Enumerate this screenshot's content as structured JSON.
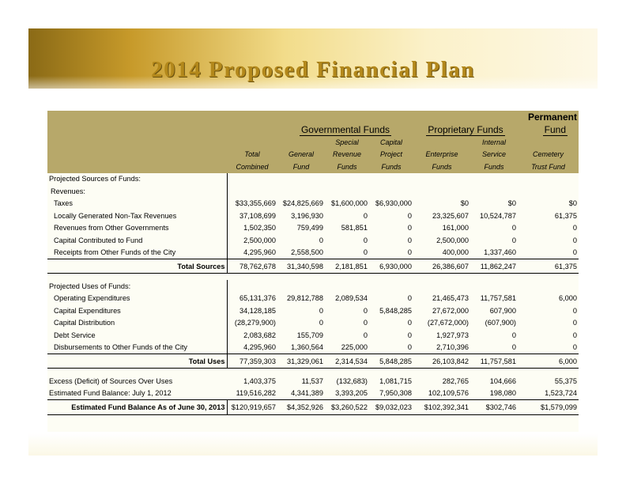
{
  "title": "2014 Proposed Financial Plan",
  "header": {
    "permanent": "Permanent",
    "governmental": "Governmental Funds",
    "proprietary": "Proprietary Funds",
    "fund": "Fund",
    "columns": [
      {
        "l1": "",
        "l2": "Total",
        "l3": "Combined"
      },
      {
        "l1": "",
        "l2": "General",
        "l3": "Fund"
      },
      {
        "l1": "Special",
        "l2": "Revenue",
        "l3": "Funds"
      },
      {
        "l1": "Capital",
        "l2": "Project",
        "l3": "Funds"
      },
      {
        "l1": "",
        "l2": "Enterprise",
        "l3": "Funds"
      },
      {
        "l1": "Internal",
        "l2": "Service",
        "l3": "Funds"
      },
      {
        "l1": "",
        "l2": "Cemetery",
        "l3": "Trust Fund"
      }
    ]
  },
  "sources": {
    "heading": "Projected Sources of Funds:",
    "subheading": "Revenues:",
    "rows": [
      {
        "label": "Taxes",
        "values": [
          "$33,355,669",
          "$24,825,669",
          "$1,600,000",
          "$6,930,000",
          "$0",
          "$0",
          "$0"
        ]
      },
      {
        "label": "Locally Generated Non-Tax Revenues",
        "values": [
          "37,108,699",
          "3,196,930",
          "0",
          "0",
          "23,325,607",
          "10,524,787",
          "61,375"
        ]
      },
      {
        "label": "Revenues from Other Governments",
        "values": [
          "1,502,350",
          "759,499",
          "581,851",
          "0",
          "161,000",
          "0",
          "0"
        ]
      },
      {
        "label": "Capital Contributed to Fund",
        "values": [
          "2,500,000",
          "0",
          "0",
          "0",
          "2,500,000",
          "0",
          "0"
        ]
      },
      {
        "label": "Receipts from Other Funds of the City",
        "values": [
          "4,295,960",
          "2,558,500",
          "0",
          "0",
          "400,000",
          "1,337,460",
          "0"
        ]
      }
    ],
    "total": {
      "label": "Total Sources",
      "values": [
        "78,762,678",
        "31,340,598",
        "2,181,851",
        "6,930,000",
        "26,386,607",
        "11,862,247",
        "61,375"
      ]
    }
  },
  "uses": {
    "heading": "Projected Uses of Funds:",
    "rows": [
      {
        "label": "Operating Expenditures",
        "values": [
          "65,131,376",
          "29,812,788",
          "2,089,534",
          "0",
          "21,465,473",
          "11,757,581",
          "6,000"
        ]
      },
      {
        "label": "Capital Expenditures",
        "values": [
          "34,128,185",
          "0",
          "0",
          "5,848,285",
          "27,672,000",
          "607,900",
          "0"
        ]
      },
      {
        "label": "Capital Distribution",
        "values": [
          "(28,279,900)",
          "0",
          "0",
          "0",
          "(27,672,000)",
          "(607,900)",
          "0"
        ]
      },
      {
        "label": "Debt Service",
        "values": [
          "2,083,682",
          "155,709",
          "0",
          "0",
          "1,927,973",
          "0",
          "0"
        ]
      },
      {
        "label": "Disbursements to Other Funds of the City",
        "values": [
          "4,295,960",
          "1,360,564",
          "225,000",
          "0",
          "2,710,396",
          "0",
          "0"
        ]
      }
    ],
    "total": {
      "label": "Total Uses",
      "values": [
        "77,359,303",
        "31,329,061",
        "2,314,534",
        "5,848,285",
        "26,103,842",
        "11,757,581",
        "6,000"
      ]
    }
  },
  "summary": {
    "rows": [
      {
        "label": "Excess (Deficit) of Sources Over Uses",
        "values": [
          "1,403,375",
          "11,537",
          "(132,683)",
          "1,081,715",
          "282,765",
          "104,666",
          "55,375"
        ]
      },
      {
        "label": "Estimated Fund Balance: July 1, 2012",
        "values": [
          "119,516,282",
          "4,341,389",
          "3,393,205",
          "7,950,308",
          "102,109,576",
          "198,080",
          "1,523,724"
        ]
      }
    ],
    "final": {
      "label": "Estimated Fund Balance As of June 30, 2013",
      "values": [
        "$120,919,657",
        "$4,352,926",
        "$3,260,522",
        "$9,032,023",
        "$102,392,341",
        "$302,746",
        "$1,579,099"
      ]
    }
  }
}
